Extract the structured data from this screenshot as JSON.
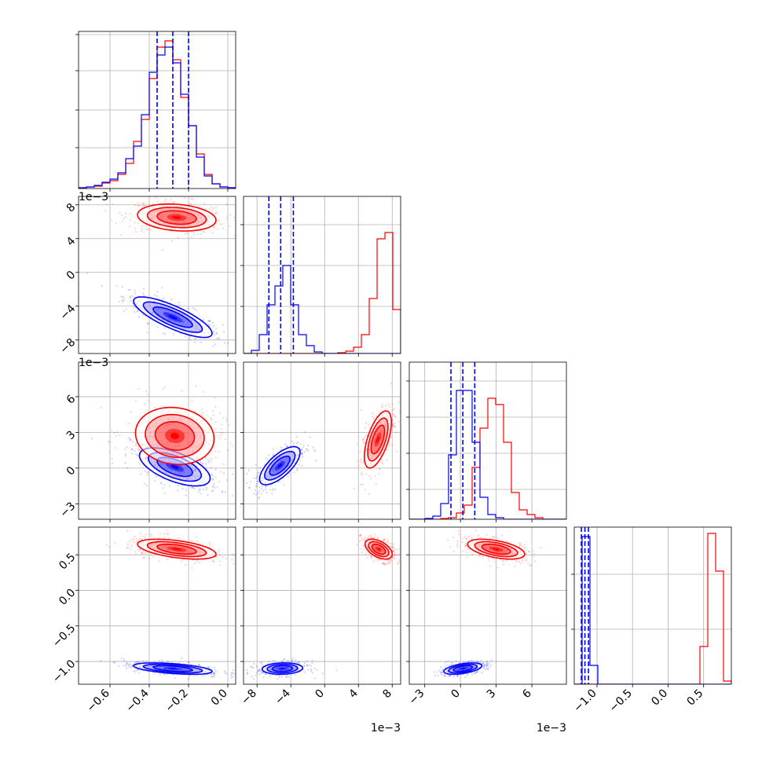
{
  "chart_data": {
    "type": "corner",
    "series": [
      {
        "name": "",
        "color": "#0000ff"
      },
      {
        "name": "",
        "color": "#ff0000"
      }
    ],
    "variables": [
      {
        "range": [
          -0.76,
          0.04
        ],
        "ticks": [
          -0.6,
          -0.4,
          -0.2,
          0.0
        ],
        "tick_labels": [
          "−0.6",
          "−0.4",
          "−0.2",
          "0.0"
        ],
        "offset": ""
      },
      {
        "range": [
          -9.6,
          9.0
        ],
        "ticks": [
          -8,
          -4,
          0,
          4,
          8
        ],
        "tick_labels": [
          "−8",
          "−4",
          "0",
          "4",
          "8"
        ],
        "offset": "1e−3"
      },
      {
        "range": [
          -4.3,
          8.9
        ],
        "ticks": [
          -3,
          0,
          3,
          6
        ],
        "tick_labels": [
          "−3",
          "0",
          "3",
          "6"
        ],
        "offset": "1e−3"
      },
      {
        "range": [
          -1.32,
          0.89
        ],
        "ticks": [
          -1.0,
          -0.5,
          0.0,
          0.5
        ],
        "tick_labels": [
          "−1.0",
          "−0.5",
          "0.0",
          "0.5"
        ],
        "offset": ""
      }
    ],
    "diag_y_ticks": [
      [
        0.26,
        0.5,
        0.75,
        0.98
      ],
      [
        0.3,
        0.56,
        0.82
      ],
      [
        0.19,
        0.42,
        0.65,
        0.88
      ],
      [
        0.35,
        0.7
      ]
    ],
    "quantiles": [
      [
        -0.36,
        -0.28,
        -0.2
      ],
      [
        -6.6,
        -5.2,
        -3.7
      ],
      [
        -0.8,
        0.2,
        1.2
      ],
      [
        -1.22,
        -1.17,
        -1.12
      ]
    ],
    "hist": [
      {
        "edges": [
          -0.76,
          -0.72,
          -0.68,
          -0.64,
          -0.6,
          -0.56,
          -0.52,
          -0.48,
          -0.44,
          -0.4,
          -0.36,
          -0.32,
          -0.28,
          -0.24,
          -0.2,
          -0.16,
          -0.12,
          -0.08,
          -0.04,
          0.0,
          0.04
        ],
        "blue": [
          0.005,
          0.01,
          0.02,
          0.04,
          0.06,
          0.1,
          0.19,
          0.27,
          0.47,
          0.74,
          0.85,
          0.9,
          0.8,
          0.6,
          0.4,
          0.2,
          0.08,
          0.03,
          0.01,
          0.005
        ],
        "red": [
          0.005,
          0.01,
          0.015,
          0.035,
          0.05,
          0.09,
          0.16,
          0.3,
          0.44,
          0.7,
          0.9,
          0.94,
          0.82,
          0.58,
          0.4,
          0.22,
          0.09,
          0.03,
          0.01,
          0.005
        ]
      },
      {
        "edges": [
          -9.6,
          -8.67,
          -7.74,
          -6.81,
          -5.88,
          -4.95,
          -4.02,
          -3.09,
          -2.16,
          -1.23,
          -0.3,
          0.63,
          1.56,
          2.49,
          3.42,
          4.35,
          5.28,
          6.21,
          7.14,
          8.07,
          9.0
        ],
        "blue": [
          0.0,
          0.02,
          0.12,
          0.31,
          0.43,
          0.56,
          0.31,
          0.12,
          0.05,
          0.01,
          0.0,
          0.0,
          0.0,
          0.0,
          0.0,
          0.0,
          0.0,
          0.0,
          0.0,
          0.0
        ],
        "red": [
          0.0,
          0.0,
          0.0,
          0.0,
          0.0,
          0.0,
          0.0,
          0.0,
          0.0,
          0.0,
          0.0,
          0.0,
          0.005,
          0.015,
          0.04,
          0.12,
          0.35,
          0.73,
          0.77,
          0.28
        ]
      },
      {
        "edges": [
          -4.3,
          -3.64,
          -2.98,
          -2.32,
          -1.66,
          -1.0,
          -0.34,
          0.32,
          0.98,
          1.64,
          2.3,
          2.96,
          3.62,
          4.28,
          4.94,
          5.6,
          6.26,
          6.92,
          7.58,
          8.24,
          8.9
        ],
        "blue": [
          0.0,
          0.0,
          0.005,
          0.02,
          0.1,
          0.41,
          0.82,
          0.82,
          0.49,
          0.14,
          0.03,
          0.01,
          0.0,
          0.0,
          0.0,
          0.0,
          0.0,
          0.0,
          0.0,
          0.0
        ],
        "red": [
          0.0,
          0.0,
          0.0,
          0.0,
          0.005,
          0.01,
          0.04,
          0.09,
          0.33,
          0.58,
          0.77,
          0.73,
          0.49,
          0.17,
          0.06,
          0.03,
          0.01,
          0.0,
          0.0,
          0.0
        ]
      },
      {
        "edges": [
          -1.32,
          -1.2095,
          -1.099,
          -0.9885,
          -0.878,
          -0.7675,
          -0.657,
          -0.5465,
          -0.436,
          -0.3255,
          -0.215,
          -0.1045,
          0.006,
          0.1165,
          0.227,
          0.3375,
          0.448,
          0.5585,
          0.669,
          0.7795,
          0.89
        ],
        "blue": [
          0.0,
          0.94,
          0.12,
          0.0,
          0.0,
          0.0,
          0.0,
          0.0,
          0.0,
          0.0,
          0.0,
          0.0,
          0.0,
          0.0,
          0.0,
          0.0,
          0.0,
          0.0,
          0.0,
          0.0
        ],
        "red": [
          0.0,
          0.0,
          0.0,
          0.0,
          0.0,
          0.0,
          0.0,
          0.0,
          0.0,
          0.0,
          0.0,
          0.0,
          0.0,
          0.0,
          0.0,
          0.0,
          0.24,
          0.96,
          0.72,
          0.02
        ]
      }
    ],
    "pairs": [
      {
        "row": 1,
        "col": 0,
        "blue": {
          "mean": [
            -0.28,
            -5.3
          ],
          "sd": [
            0.1,
            1.2
          ],
          "rho": -0.8
        },
        "red": {
          "mean": [
            -0.26,
            6.5
          ],
          "sd": [
            0.1,
            0.8
          ],
          "rho": -0.2
        }
      },
      {
        "row": 2,
        "col": 0,
        "blue": {
          "mean": [
            -0.27,
            0.1
          ],
          "sd": [
            0.09,
            0.8
          ],
          "rho": -0.6
        },
        "red": {
          "mean": [
            -0.27,
            2.7
          ],
          "sd": [
            0.1,
            1.2
          ],
          "rho": -0.1
        }
      },
      {
        "row": 2,
        "col": 1,
        "blue": {
          "mean": [
            -5.3,
            0.2
          ],
          "sd": [
            1.2,
            0.8
          ],
          "rho": 0.7
        },
        "red": {
          "mean": [
            6.3,
            2.4
          ],
          "sd": [
            0.8,
            1.2
          ],
          "rho": 0.6
        }
      },
      {
        "row": 3,
        "col": 0,
        "blue": {
          "mean": [
            -0.28,
            -1.1
          ],
          "sd": [
            0.1,
            0.04
          ],
          "rho": -0.5
        },
        "red": {
          "mean": [
            -0.26,
            0.58
          ],
          "sd": [
            0.1,
            0.07
          ],
          "rho": -0.5
        }
      },
      {
        "row": 3,
        "col": 1,
        "blue": {
          "mean": [
            -5.0,
            -1.1
          ],
          "sd": [
            1.2,
            0.04
          ],
          "rho": 0.1
        },
        "red": {
          "mean": [
            6.4,
            0.58
          ],
          "sd": [
            0.8,
            0.07
          ],
          "rho": -0.5
        }
      },
      {
        "row": 3,
        "col": 2,
        "blue": {
          "mean": [
            0.2,
            -1.1
          ],
          "sd": [
            0.8,
            0.04
          ],
          "rho": 0.5
        },
        "red": {
          "mean": [
            3.0,
            0.58
          ],
          "sd": [
            1.2,
            0.07
          ],
          "rho": -0.5
        }
      }
    ],
    "contour_levels_sigma": [
      0.5,
      1.0,
      1.5,
      2.0
    ],
    "points_per_cloud": 380,
    "grid": true
  }
}
